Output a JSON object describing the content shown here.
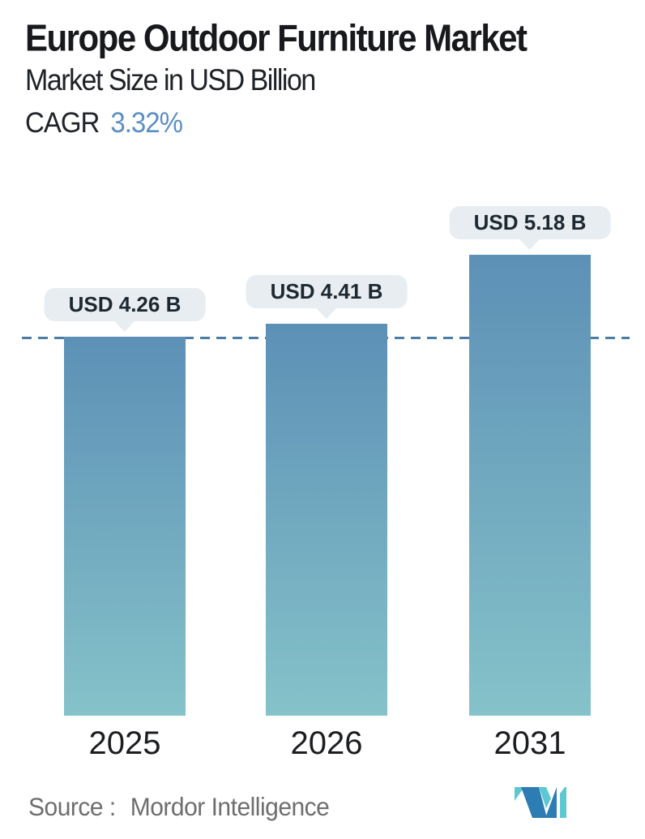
{
  "header": {
    "title": "Europe Outdoor Furniture Market",
    "subtitle": "Market Size in USD Billion",
    "cagr_label": "CAGR",
    "cagr_value": "3.32%"
  },
  "chart_data": {
    "type": "bar",
    "categories": [
      "2025",
      "2026",
      "2031"
    ],
    "values": [
      4.26,
      4.41,
      5.18
    ],
    "value_labels": [
      "USD 4.26 B",
      "USD 4.41 B",
      "USD 5.18 B"
    ],
    "title": "Europe Outdoor Furniture Market",
    "ylabel": "Market Size in USD Billion",
    "ylim": [
      0,
      6.7
    ],
    "grid": false,
    "legend": false,
    "reference_line": {
      "value": 4.26,
      "style": "dashed"
    },
    "bar_gradient": {
      "top": "#5d90b6",
      "bottom": "#85c2c9"
    }
  },
  "footer": {
    "source_label": "Source :",
    "source_value": "Mordor Intelligence",
    "logo": "mordor-intelligence-logo",
    "logo_colors": {
      "dark": "#2e7cb4",
      "light": "#5ec8d2"
    }
  },
  "colors": {
    "accent_blue": "#5c8fc3",
    "dashed_line": "#4d7da7",
    "pill_bg": "#e7edf0",
    "title_text": "#17191c",
    "source_text": "#6e6e6e"
  }
}
